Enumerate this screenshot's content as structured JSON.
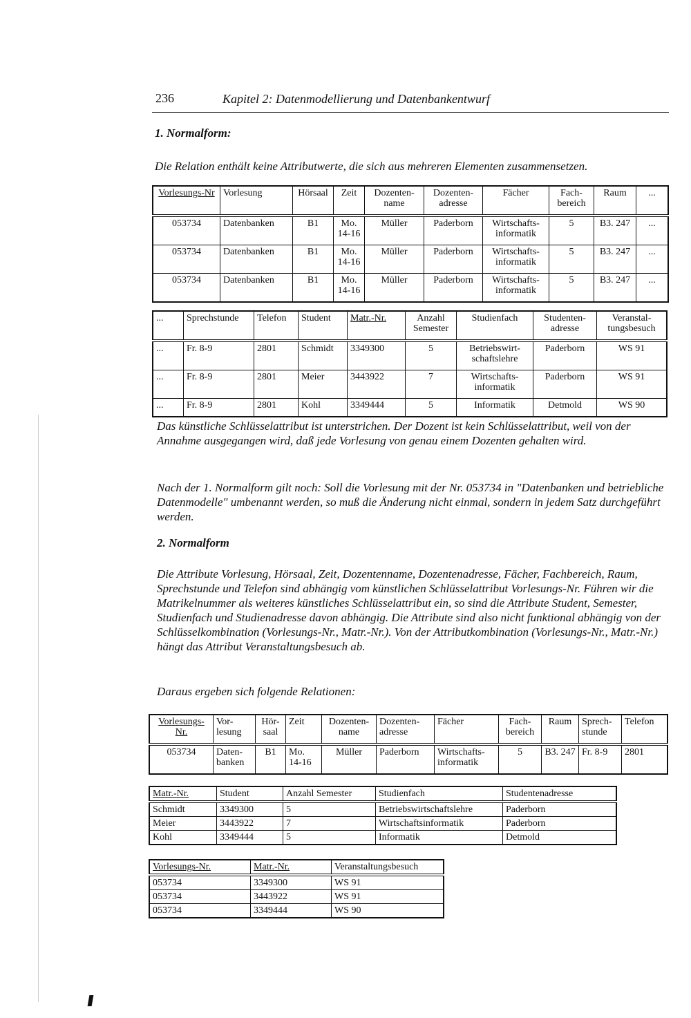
{
  "header": {
    "page_number": "236",
    "chapter_title": "Kapitel 2: Datenmodellierung und Datenbankentwurf"
  },
  "section1": {
    "heading": "1. Normalform:",
    "intro": "Die Relation enthält keine Attributwerte, die sich aus mehreren Elementen zusammensetzen."
  },
  "table1": {
    "headers": [
      "Vorlesungs-Nr",
      "Vorlesung",
      "Hörsaal",
      "Zeit",
      "Dozenten-name",
      "Dozenten-adresse",
      "Fächer",
      "Fach-bereich",
      "Raum",
      "..."
    ],
    "key_columns": [
      0
    ],
    "rows": [
      [
        "053734",
        "Datenbanken",
        "B1",
        "Mo. 14-16",
        "Müller",
        "Paderborn",
        "Wirtschafts-informatik",
        "5",
        "B3. 247",
        "..."
      ],
      [
        "053734",
        "Datenbanken",
        "B1",
        "Mo. 14-16",
        "Müller",
        "Paderborn",
        "Wirtschafts-informatik",
        "5",
        "B3. 247",
        "..."
      ],
      [
        "053734",
        "Datenbanken",
        "B1",
        "Mo. 14-16",
        "Müller",
        "Paderborn",
        "Wirtschafts-informatik",
        "5",
        "B3. 247",
        "..."
      ]
    ]
  },
  "table2": {
    "headers": [
      "...",
      "Sprechstunde",
      "Telefon",
      "Student",
      "Matr.-Nr.",
      "Anzahl Semester",
      "Studienfach",
      "Studenten-adresse",
      "Veranstal-tungsbesuch"
    ],
    "key_columns": [
      4
    ],
    "rows": [
      [
        "...",
        "Fr. 8-9",
        "2801",
        "Schmidt",
        "3349300",
        "5",
        "Betriebswirt-schaftslehre",
        "Paderborn",
        "WS 91"
      ],
      [
        "...",
        "Fr. 8-9",
        "2801",
        "Meier",
        "3443922",
        "7",
        "Wirtschafts-informatik",
        "Paderborn",
        "WS 91"
      ],
      [
        "...",
        "Fr. 8-9",
        "2801",
        "Kohl",
        "3349444",
        "5",
        "Informatik",
        "Detmold",
        "WS 90"
      ]
    ]
  },
  "para1": "Das künstliche Schlüsselattribut ist unterstrichen. Der Dozent ist kein Schlüsselattribut, weil von der Annahme ausgegangen wird, daß jede Vorlesung von genau einem Dozenten gehalten wird.",
  "para2": "Nach der 1. Normalform gilt noch: Soll die Vorlesung mit der Nr. 053734 in \"Datenbanken und betriebliche Datenmodelle\" umbenannt werden, so muß die Änderung nicht einmal, sondern in jedem Satz durchgeführt werden.",
  "section2": {
    "heading": "2. Normalform",
    "para": "Die Attribute Vorlesung, Hörsaal, Zeit, Dozentenname, Dozentenadresse, Fächer, Fachbereich, Raum, Sprechstunde und Telefon sind abhängig vom künstlichen Schlüsselattribut Vorlesungs-Nr. Führen wir die Matrikelnummer als weiteres künstliches Schlüsselattribut ein, so sind die Attribute Student, Semester, Studienfach und Studienadresse davon abhängig. Die Attribute sind also nicht funktional abhängig von der Schlüsselkombination (Vorlesungs-Nr., Matr.-Nr.). Von der Attributkombination (Vorlesungs-Nr., Matr.-Nr.) hängt das Attribut Veranstaltungsbesuch ab.",
    "lead": "Daraus ergeben sich folgende Relationen:"
  },
  "table3": {
    "headers": [
      "Vorlesungs-Nr.",
      "Vor-lesung",
      "Hör-saal",
      "Zeit",
      "Dozenten-name",
      "Dozenten-adresse",
      "Fächer",
      "Fach-bereich",
      "Raum",
      "Sprech-stunde",
      "Telefon"
    ],
    "key_columns": [
      0
    ],
    "rows": [
      [
        "053734",
        "Daten-banken",
        "B1",
        "Mo. 14-16",
        "Müller",
        "Paderborn",
        "Wirtschafts-informatik",
        "5",
        "B3. 247",
        "Fr. 8-9",
        "2801"
      ]
    ]
  },
  "table4": {
    "headers": [
      "Matr.-Nr.",
      "Student",
      "Anzahl Semester",
      "Studienfach",
      "Studentenadresse"
    ],
    "key_columns": [
      0
    ],
    "rows": [
      [
        "Schmidt",
        "3349300",
        "5",
        "Betriebswirtschaftslehre",
        "Paderborn"
      ],
      [
        "Meier",
        "3443922",
        "7",
        "Wirtschaftsinformatik",
        "Paderborn"
      ],
      [
        "Kohl",
        "3349444",
        "5",
        "Informatik",
        "Detmold"
      ]
    ]
  },
  "table5": {
    "headers": [
      "Vorlesungs-Nr.",
      "Matr.-Nr.",
      "Veranstaltungsbesuch"
    ],
    "key_columns": [
      0,
      1
    ],
    "rows": [
      [
        "053734",
        "3349300",
        "WS 91"
      ],
      [
        "053734",
        "3443922",
        "WS 91"
      ],
      [
        "053734",
        "3349444",
        "WS 90"
      ]
    ]
  }
}
